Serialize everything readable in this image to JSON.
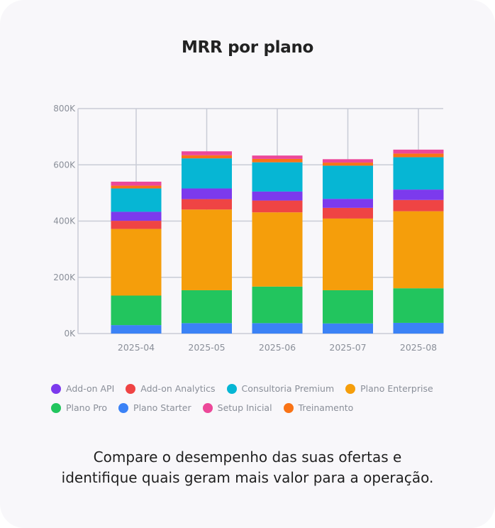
{
  "chart_data": {
    "type": "bar",
    "stacked": true,
    "title": "MRR por plano",
    "xlabel": "",
    "ylabel": "",
    "categories": [
      "2025-04",
      "2025-05",
      "2025-06",
      "2025-07",
      "2025-08"
    ],
    "ylim": [
      0,
      800000
    ],
    "yticks": [
      0,
      200000,
      400000,
      600000,
      800000
    ],
    "ytick_labels": [
      "0K",
      "200K",
      "400K",
      "600K",
      "800K"
    ],
    "grid": true,
    "legend_position": "bottom",
    "series": [
      {
        "name": "Plano Starter",
        "color": "#3b82f6",
        "values": [
          30000,
          37000,
          37000,
          36000,
          38000
        ]
      },
      {
        "name": "Plano Pro",
        "color": "#22c55e",
        "values": [
          105000,
          117000,
          130000,
          118000,
          123000
        ]
      },
      {
        "name": "Plano Enterprise",
        "color": "#f59e0b",
        "values": [
          237000,
          287000,
          264000,
          255000,
          274000
        ]
      },
      {
        "name": "Add-on Analytics",
        "color": "#ef4444",
        "values": [
          29000,
          37000,
          42000,
          38000,
          40000
        ]
      },
      {
        "name": "Add-on API",
        "color": "#7c3aed",
        "values": [
          32000,
          38000,
          32000,
          32000,
          37000
        ]
      },
      {
        "name": "Consultoria Premium",
        "color": "#06b6d4",
        "values": [
          83000,
          107000,
          104000,
          118000,
          115000
        ]
      },
      {
        "name": "Treinamento",
        "color": "#f97316",
        "values": [
          10000,
          11000,
          12000,
          11000,
          13000
        ]
      },
      {
        "name": "Setup Inicial",
        "color": "#ec4899",
        "values": [
          14000,
          14000,
          12000,
          12000,
          14000
        ]
      }
    ]
  },
  "legend": {
    "row1": [
      {
        "label": "Add-on API",
        "color": "#7c3aed"
      },
      {
        "label": "Add-on Analytics",
        "color": "#ef4444"
      },
      {
        "label": "Consultoria Premium",
        "color": "#06b6d4"
      },
      {
        "label": "Plano Enterprise",
        "color": "#f59e0b"
      }
    ],
    "row2": [
      {
        "label": "Plano Pro",
        "color": "#22c55e"
      },
      {
        "label": "Plano Starter",
        "color": "#3b82f6"
      },
      {
        "label": "Setup Inicial",
        "color": "#ec4899"
      },
      {
        "label": "Treinamento",
        "color": "#f97316"
      }
    ]
  },
  "caption": {
    "line1": "Compare o desempenho das suas ofertas e",
    "line2": "identifique quais geram mais valor para a operação."
  }
}
